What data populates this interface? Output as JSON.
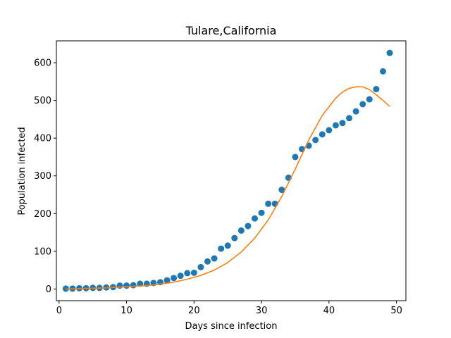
{
  "chart_data": {
    "type": "scatter",
    "title": "Tulare,California",
    "xlabel": "Days since infection",
    "ylabel": "Population infected",
    "xlim": [
      -0.4,
      51.4
    ],
    "ylim": [
      -31,
      658
    ],
    "xticks": [
      0,
      10,
      20,
      30,
      40,
      50
    ],
    "yticks": [
      0,
      100,
      200,
      300,
      400,
      500,
      600
    ],
    "grid": false,
    "series": [
      {
        "kind": "scatter",
        "color": "#1f77b4",
        "x": [
          1,
          2,
          3,
          4,
          5,
          6,
          7,
          8,
          9,
          10,
          11,
          12,
          13,
          14,
          15,
          16,
          17,
          18,
          19,
          20,
          21,
          22,
          23,
          24,
          25,
          26,
          27,
          28,
          29,
          30,
          31,
          32,
          33,
          34,
          35,
          36,
          37,
          38,
          39,
          40,
          41,
          42,
          43,
          44,
          45,
          46,
          47,
          48,
          49
        ],
        "y": [
          1,
          1,
          2,
          2,
          3,
          3,
          4,
          5,
          9,
          9,
          10,
          14,
          14,
          16,
          18,
          23,
          29,
          35,
          42,
          43,
          58,
          73,
          81,
          107,
          115,
          135,
          155,
          167,
          187,
          202,
          226,
          226,
          263,
          295,
          350,
          371,
          380,
          395,
          410,
          421,
          434,
          440,
          453,
          471,
          490,
          503,
          530,
          577,
          626
        ]
      },
      {
        "kind": "line",
        "color": "#ff7f0e",
        "x": [
          1,
          3,
          5,
          7,
          9,
          11,
          13,
          15,
          17,
          19,
          21,
          23,
          25,
          27,
          29,
          31,
          33,
          35,
          37,
          39,
          41,
          42,
          43,
          44,
          45,
          46,
          47,
          48,
          49
        ],
        "y": [
          0,
          1,
          2,
          3,
          5,
          7,
          9,
          13,
          18,
          26,
          36,
          50,
          70,
          98,
          135,
          183,
          245,
          318,
          395,
          460,
          506,
          522,
          532,
          536,
          536,
          529,
          515,
          500,
          484
        ]
      }
    ]
  }
}
